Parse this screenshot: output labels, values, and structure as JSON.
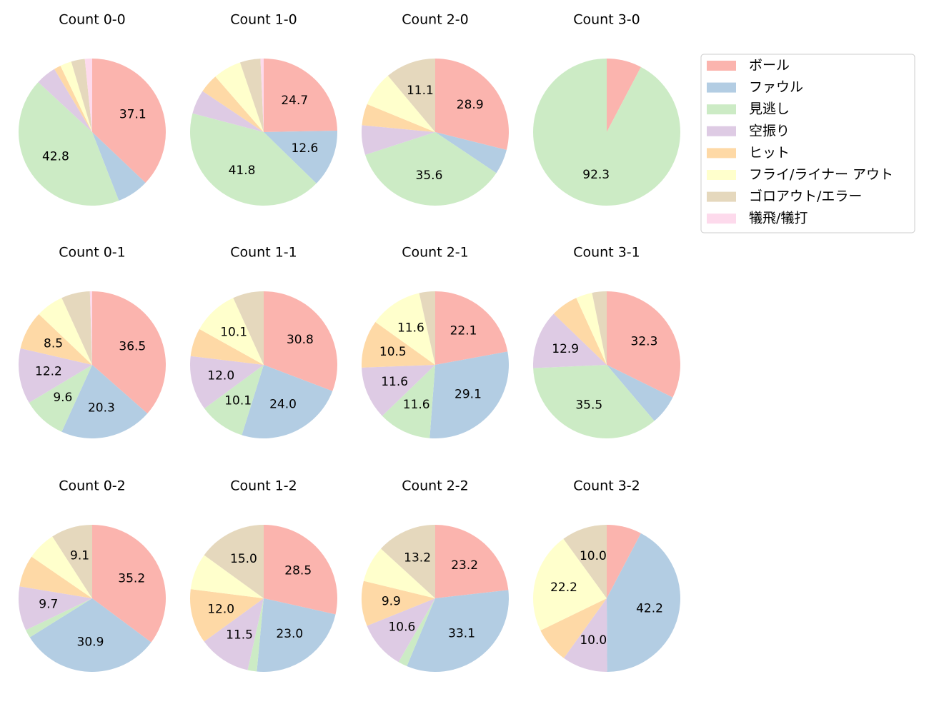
{
  "chart_data": [
    {
      "type": "pie",
      "title": "Count 0-0",
      "categories": [
        "ボール",
        "ファウル",
        "見逃し",
        "空振り",
        "ヒット",
        "フライ/ライナー アウト",
        "ゴロアウト/エラー",
        "犠飛/犠打"
      ],
      "colors": [
        "#fbb4ae",
        "#b3cde3",
        "#ccebc5",
        "#decbe4",
        "#fed9a6",
        "#ffffcc",
        "#e5d8bd",
        "#fddaec"
      ],
      "legend": "upper right",
      "values": [
        37.1,
        7.0,
        42.8,
        4.5,
        1.5,
        2.5,
        3.0,
        1.6
      ],
      "value_labels": [
        "37.1",
        null,
        "42.8",
        null,
        null,
        null,
        null,
        null
      ]
    },
    {
      "type": "pie",
      "title": "Count 1-0",
      "categories": [
        "ボール",
        "ファウル",
        "見逃し",
        "空振り",
        "ヒット",
        "フライ/ライナー アウト",
        "ゴロアウト/エラー",
        "犠飛/犠打"
      ],
      "colors": [
        "#fbb4ae",
        "#b3cde3",
        "#ccebc5",
        "#decbe4",
        "#fed9a6",
        "#ffffcc",
        "#e5d8bd",
        "#fddaec"
      ],
      "values": [
        24.7,
        12.6,
        41.8,
        5.3,
        4.2,
        6.2,
        4.5,
        0.7
      ],
      "value_labels": [
        "24.7",
        "12.6",
        "41.8",
        null,
        null,
        null,
        null,
        null
      ]
    },
    {
      "type": "pie",
      "title": "Count 2-0",
      "categories": [
        "ボール",
        "ファウル",
        "見逃し",
        "空振り",
        "ヒット",
        "フライ/ライナー アウト",
        "ゴロアウト/エラー",
        "犠飛/犠打"
      ],
      "colors": [
        "#fbb4ae",
        "#b3cde3",
        "#ccebc5",
        "#decbe4",
        "#fed9a6",
        "#ffffcc",
        "#e5d8bd",
        "#fddaec"
      ],
      "values": [
        28.9,
        5.5,
        35.6,
        6.5,
        4.7,
        7.7,
        11.1,
        0
      ],
      "value_labels": [
        "28.9",
        null,
        "35.6",
        null,
        null,
        null,
        "11.1",
        null
      ]
    },
    {
      "type": "pie",
      "title": "Count 3-0",
      "categories": [
        "ボール",
        "ファウル",
        "見逃し",
        "空振り",
        "ヒット",
        "フライ/ライナー アウト",
        "ゴロアウト/エラー",
        "犠飛/犠打"
      ],
      "colors": [
        "#fbb4ae",
        "#b3cde3",
        "#ccebc5",
        "#decbe4",
        "#fed9a6",
        "#ffffcc",
        "#e5d8bd",
        "#fddaec"
      ],
      "values": [
        7.7,
        0,
        92.3,
        0,
        0,
        0,
        0,
        0
      ],
      "value_labels": [
        null,
        null,
        "92.3",
        null,
        null,
        null,
        null,
        null
      ]
    },
    {
      "type": "pie",
      "title": "Count 0-1",
      "categories": [
        "ボール",
        "ファウル",
        "見逃し",
        "空振り",
        "ヒット",
        "フライ/ライナー アウト",
        "ゴロアウト/エラー",
        "犠飛/犠打"
      ],
      "colors": [
        "#fbb4ae",
        "#b3cde3",
        "#ccebc5",
        "#decbe4",
        "#fed9a6",
        "#ffffcc",
        "#e5d8bd",
        "#fddaec"
      ],
      "values": [
        36.5,
        20.3,
        9.6,
        12.2,
        8.5,
        6.1,
        6.3,
        0.5
      ],
      "value_labels": [
        "36.5",
        "20.3",
        "9.6",
        "12.2",
        "8.5",
        null,
        null,
        null
      ]
    },
    {
      "type": "pie",
      "title": "Count 1-1",
      "categories": [
        "ボール",
        "ファウル",
        "見逃し",
        "空振り",
        "ヒット",
        "フライ/ライナー アウト",
        "ゴロアウト/エラー",
        "犠飛/犠打"
      ],
      "colors": [
        "#fbb4ae",
        "#b3cde3",
        "#ccebc5",
        "#decbe4",
        "#fed9a6",
        "#ffffcc",
        "#e5d8bd",
        "#fddaec"
      ],
      "values": [
        30.8,
        24.0,
        10.1,
        12.0,
        6.2,
        10.1,
        6.8,
        0
      ],
      "value_labels": [
        "30.8",
        "24.0",
        "10.1",
        "12.0",
        null,
        "10.1",
        null,
        null
      ]
    },
    {
      "type": "pie",
      "title": "Count 2-1",
      "categories": [
        "ボール",
        "ファウル",
        "見逃し",
        "空振り",
        "ヒット",
        "フライ/ライナー アウト",
        "ゴロアウト/エラー",
        "犠飛/犠打"
      ],
      "colors": [
        "#fbb4ae",
        "#b3cde3",
        "#ccebc5",
        "#decbe4",
        "#fed9a6",
        "#ffffcc",
        "#e5d8bd",
        "#fddaec"
      ],
      "values": [
        22.1,
        29.1,
        11.6,
        11.6,
        10.5,
        11.6,
        3.5,
        0
      ],
      "value_labels": [
        "22.1",
        "29.1",
        "11.6",
        "11.6",
        "10.5",
        "11.6",
        null,
        null
      ]
    },
    {
      "type": "pie",
      "title": "Count 3-1",
      "categories": [
        "ボール",
        "ファウル",
        "見逃し",
        "空振り",
        "ヒット",
        "フライ/ライナー アウト",
        "ゴロアウト/エラー",
        "犠飛/犠打"
      ],
      "colors": [
        "#fbb4ae",
        "#b3cde3",
        "#ccebc5",
        "#decbe4",
        "#fed9a6",
        "#ffffcc",
        "#e5d8bd",
        "#fddaec"
      ],
      "values": [
        32.3,
        6.5,
        35.5,
        12.9,
        6.0,
        3.6,
        3.2,
        0
      ],
      "value_labels": [
        "32.3",
        null,
        "35.5",
        "12.9",
        null,
        null,
        null,
        null
      ]
    },
    {
      "type": "pie",
      "title": "Count 0-2",
      "categories": [
        "ボール",
        "ファウル",
        "見逃し",
        "空振り",
        "ヒット",
        "フライ/ライナー アウト",
        "ゴロアウト/エラー",
        "犠飛/犠打"
      ],
      "colors": [
        "#fbb4ae",
        "#b3cde3",
        "#ccebc5",
        "#decbe4",
        "#fed9a6",
        "#ffffcc",
        "#e5d8bd",
        "#fddaec"
      ],
      "values": [
        35.2,
        30.9,
        1.8,
        9.7,
        7.0,
        6.3,
        9.1,
        0
      ],
      "value_labels": [
        "35.2",
        "30.9",
        null,
        "9.7",
        null,
        null,
        "9.1",
        null
      ]
    },
    {
      "type": "pie",
      "title": "Count 1-2",
      "categories": [
        "ボール",
        "ファウル",
        "見逃し",
        "空振り",
        "ヒット",
        "フライ/ライナー アウト",
        "ゴロアウト/エラー",
        "犠飛/犠打"
      ],
      "colors": [
        "#fbb4ae",
        "#b3cde3",
        "#ccebc5",
        "#decbe4",
        "#fed9a6",
        "#ffffcc",
        "#e5d8bd",
        "#fddaec"
      ],
      "values": [
        28.5,
        23.0,
        2.0,
        11.5,
        12.0,
        8.0,
        15.0,
        0
      ],
      "value_labels": [
        "28.5",
        "23.0",
        null,
        "11.5",
        "12.0",
        null,
        "15.0",
        null
      ]
    },
    {
      "type": "pie",
      "title": "Count 2-2",
      "categories": [
        "ボール",
        "ファウル",
        "見逃し",
        "空振り",
        "ヒット",
        "フライ/ライナー アウト",
        "ゴロアウト/エラー",
        "犠飛/犠打"
      ],
      "colors": [
        "#fbb4ae",
        "#b3cde3",
        "#ccebc5",
        "#decbe4",
        "#fed9a6",
        "#ffffcc",
        "#e5d8bd",
        "#fddaec"
      ],
      "values": [
        23.2,
        33.1,
        2.0,
        10.6,
        9.9,
        8.0,
        13.2,
        0
      ],
      "value_labels": [
        "23.2",
        "33.1",
        null,
        "10.6",
        "9.9",
        null,
        "13.2",
        null
      ]
    },
    {
      "type": "pie",
      "title": "Count 3-2",
      "categories": [
        "ボール",
        "ファウル",
        "見逃し",
        "空振り",
        "ヒット",
        "フライ/ライナー アウト",
        "ゴロアウト/エラー",
        "犠飛/犠打"
      ],
      "colors": [
        "#fbb4ae",
        "#b3cde3",
        "#ccebc5",
        "#decbe4",
        "#fed9a6",
        "#ffffcc",
        "#e5d8bd",
        "#fddaec"
      ],
      "values": [
        7.7,
        42.2,
        0,
        10.0,
        7.9,
        22.2,
        10.0,
        0
      ],
      "value_labels": [
        null,
        "42.2",
        null,
        "10.0",
        null,
        "22.2",
        "10.0",
        null
      ]
    }
  ]
}
